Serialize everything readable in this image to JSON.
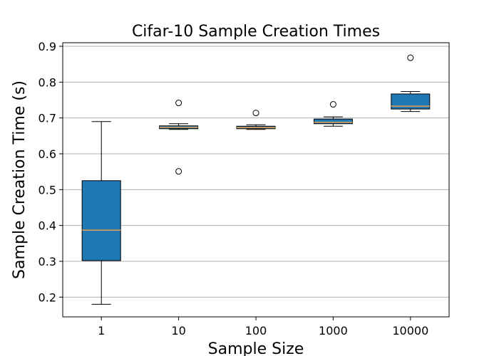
{
  "chart_data": {
    "type": "box",
    "title": "Cifar-10 Sample Creation Times",
    "xlabel": "Sample Size",
    "ylabel": "Sample Creation Time (s)",
    "categories": [
      "1",
      "10",
      "100",
      "1000",
      "10000"
    ],
    "ylim": [
      0.145,
      0.91
    ],
    "yticks": [
      0.2,
      0.3,
      0.4,
      0.5,
      0.6,
      0.7,
      0.8,
      0.9
    ],
    "ytick_labels": [
      "0.2",
      "0.3",
      "0.4",
      "0.5",
      "0.6",
      "0.7",
      "0.8",
      "0.9"
    ],
    "grid": "y",
    "boxes": [
      {
        "whisker_low": 0.18,
        "q1": 0.302,
        "median": 0.387,
        "q3": 0.525,
        "whisker_high": 0.69,
        "outliers": []
      },
      {
        "whisker_low": 0.668,
        "q1": 0.67,
        "median": 0.674,
        "q3": 0.678,
        "whisker_high": 0.684,
        "outliers": [
          0.742,
          0.551
        ]
      },
      {
        "whisker_low": 0.668,
        "q1": 0.67,
        "median": 0.673,
        "q3": 0.677,
        "whisker_high": 0.681,
        "outliers": [
          0.714
        ]
      },
      {
        "whisker_low": 0.677,
        "q1": 0.684,
        "median": 0.688,
        "q3": 0.697,
        "whisker_high": 0.703,
        "outliers": [
          0.738
        ]
      },
      {
        "whisker_low": 0.718,
        "q1": 0.725,
        "median": 0.733,
        "q3": 0.767,
        "whisker_high": 0.774,
        "outliers": [
          0.868
        ]
      }
    ],
    "colors": {
      "box_fill": "#1f77b4",
      "median": "#e8a14c",
      "edge": "#000000",
      "grid": "#b0b0b0",
      "outlier_fill": "#ffffff"
    }
  }
}
